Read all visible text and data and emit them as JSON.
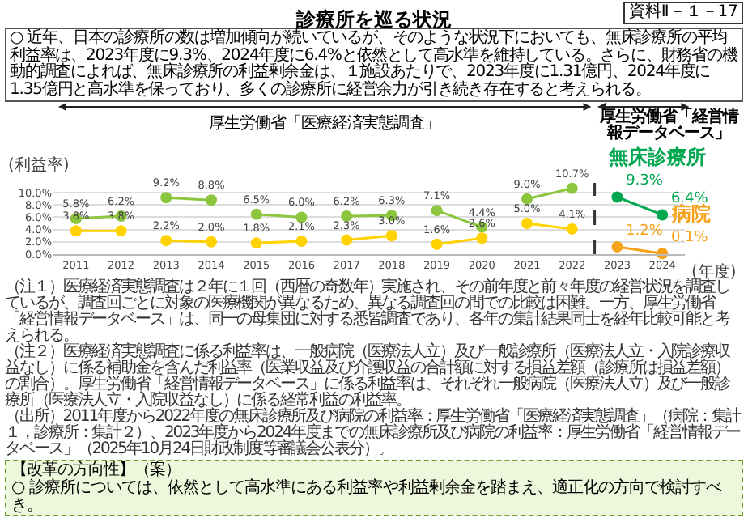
{
  "chart_data": {
    "type": "line",
    "title": "診療所を巡る状況",
    "ylabel": "(利益率)",
    "xlabel": "(年度)",
    "xlim": [
      2010.5,
      2024.5
    ],
    "xticks": [
      2011,
      2012,
      2013,
      2014,
      2015,
      2016,
      2017,
      2018,
      2019,
      2020,
      2021,
      2022,
      2023,
      2024
    ],
    "ylim": [
      0,
      11.6
    ],
    "yticks": [
      {
        "value": 0,
        "label": "0.0%"
      },
      {
        "value": 2,
        "label": "2.0%"
      },
      {
        "value": 4,
        "label": "4.0%"
      },
      {
        "value": 6,
        "label": "6.0%"
      },
      {
        "value": 8,
        "label": "8.0%"
      },
      {
        "value": 10,
        "label": "10.0%"
      }
    ],
    "grid": "y",
    "marker": "circle",
    "line_style": "solid",
    "ref_lines": [
      {
        "axis": "x",
        "value": 2022.5,
        "line_style": "dashed",
        "color": "#333333"
      }
    ],
    "series": [
      {
        "x": [
          2011,
          2012
        ],
        "values": [
          5.8,
          6.2
        ],
        "value_labels": [
          "5.8%",
          "6.2%"
        ],
        "color": "#8cc63f"
      },
      {
        "x": [
          2013,
          2014
        ],
        "values": [
          9.2,
          8.8
        ],
        "value_labels": [
          "9.2%",
          "8.8%"
        ],
        "color": "#8cc63f"
      },
      {
        "x": [
          2015,
          2016
        ],
        "values": [
          6.5,
          6.0
        ],
        "value_labels": [
          "6.5%",
          "6.0%"
        ],
        "color": "#8cc63f"
      },
      {
        "x": [
          2017,
          2018
        ],
        "values": [
          6.2,
          6.3
        ],
        "value_labels": [
          "6.2%",
          "6.3%"
        ],
        "color": "#8cc63f"
      },
      {
        "x": [
          2019,
          2020
        ],
        "values": [
          7.1,
          4.4
        ],
        "value_labels": [
          "7.1%",
          "4.4%"
        ],
        "color": "#8cc63f"
      },
      {
        "x": [
          2021,
          2022
        ],
        "values": [
          9.0,
          10.7
        ],
        "value_labels": [
          "9.0%",
          "10.7%"
        ],
        "color": "#8cc63f"
      },
      {
        "x": [
          2011,
          2012
        ],
        "values": [
          3.8,
          3.8
        ],
        "value_labels": [
          "3.8%",
          "3.8%"
        ],
        "color": "#ffd200"
      },
      {
        "x": [
          2013,
          2014
        ],
        "values": [
          2.2,
          2.0
        ],
        "value_labels": [
          "2.2%",
          "2.0%"
        ],
        "color": "#ffd200"
      },
      {
        "x": [
          2015,
          2016
        ],
        "values": [
          1.8,
          2.1
        ],
        "value_labels": [
          "1.8%",
          "2.1%"
        ],
        "color": "#ffd200"
      },
      {
        "x": [
          2017,
          2018
        ],
        "values": [
          2.3,
          3.0
        ],
        "value_labels": [
          "2.3%",
          "3.0%"
        ],
        "color": "#ffd200"
      },
      {
        "x": [
          2019,
          2020
        ],
        "values": [
          1.6,
          2.6
        ],
        "value_labels": [
          "1.6%",
          "2.6%"
        ],
        "color": "#ffd200"
      },
      {
        "x": [
          2021,
          2022
        ],
        "values": [
          5.0,
          4.1
        ],
        "value_labels": [
          "5.0%",
          "4.1%"
        ],
        "color": "#ffd200"
      },
      {
        "name": "無床診療所",
        "x": [
          2023,
          2024
        ],
        "values": [
          9.3,
          6.4
        ],
        "value_labels": [
          "9.3%",
          "6.4%"
        ],
        "color": "#00a650"
      },
      {
        "name": "病院",
        "x": [
          2023,
          2024
        ],
        "values": [
          1.2,
          0.1
        ],
        "value_labels": [
          "1.2%",
          "0.1%"
        ],
        "color": "#f7a21b"
      }
    ],
    "annotations": [
      "資料Ⅱ－１－17",
      "○ 近年、日本の診療所の数は増加傾向が続いているが、そのような状況下においても、無床診療所の平均利益率は、2023年度に9.3%、2024年度に6.4%と依然として高水準を維持している。さらに、財務省の機動的調査によれば、無床診療所の利益剰余金は、１施設あたりで、2023年度に1.31億円、2024年度に1.35億円と高水準を保っており、多くの診療所に経営余力が引き続き存在すると考えられる。",
      "厚生労働省「医療経済実態調査」",
      "厚生労働省「経営情報データベース」",
      "（注１）医療経済実態調査は２年に１回（西暦の奇数年）実施され、その前年度と前々年度の経営状況を調査しているが、調査回ごとに対象の医療機関が異なるため、異なる調査回の間での比較は困難。一方、厚生労働省「経営情報データベース」は、同一の母集団に対する悉皆調査であり、各年の集計結果同士を経年比較可能と考えられる。",
      "（注２）医療経済実態調査に係る利益率は、一般病院（医療法人立）及び一般診療所（医療法人立・入院診療収益なし）に係る補助金を含んだ利益率（医業収益及び介護収益の合計額に対する損益差額（診療所は損益差額）の割合）。厚生労働省「経営情報データベース」に係る利益率は、それぞれ一般病院（医療法人立）及び一般診療所（医療法人立・入院収益なし）に係る経常利益の利益率。",
      "（出所）2011年度から2022年度の無床診療所及び病院の利益率：厚生労働省「医療経済実態調査」（病院：集計１，診療所：集計２）、2023年度から2024年度までの無床診療所及び病院の利益率：厚生労働省「経営情報データベース」（2025年10月24日財政制度等審議会公表分）。",
      "【改革の方向性】（案）",
      "○ 診療所については、依然として高水準にある利益率や利益剰余金を踏まえ、適正化の方向で検討すべき。"
    ]
  }
}
